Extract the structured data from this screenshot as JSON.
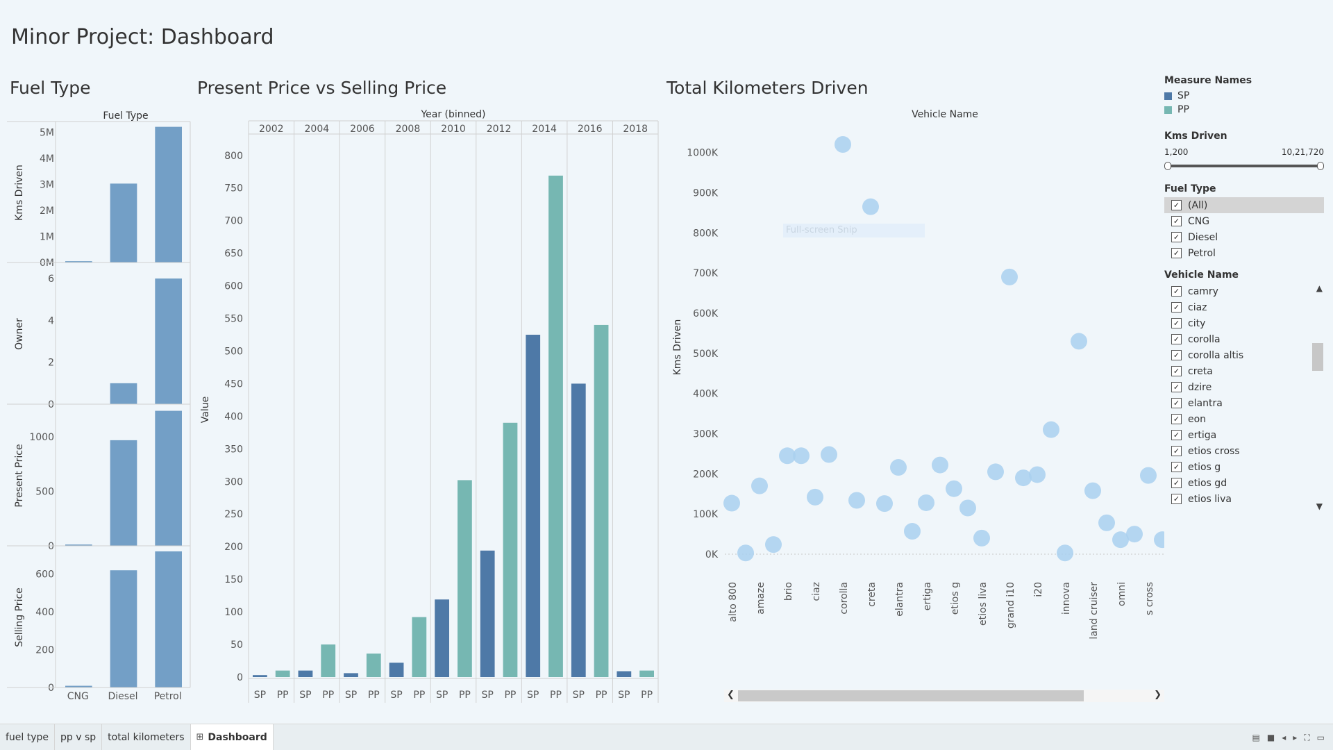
{
  "dashboard_title": "Minor Project: Dashboard",
  "colors": {
    "sp": "#4e79a7",
    "pp": "#76b7b2",
    "fuel_bar": "#739fc6",
    "bubble": "#a9d0ee"
  },
  "fuel_panel": {
    "title": "Fuel Type",
    "header": "Fuel Type",
    "categories": [
      "CNG",
      "Diesel",
      "Petrol"
    ],
    "rows": [
      {
        "label": "Kms Driven",
        "ticks": [
          "5M",
          "4M",
          "3M",
          "2M",
          "1M",
          "0M"
        ]
      },
      {
        "label": "Owner",
        "ticks": [
          "6",
          "4",
          "2",
          "0"
        ]
      },
      {
        "label": "Present Price",
        "ticks": [
          "1000",
          "500",
          "0"
        ]
      },
      {
        "label": "Selling Price",
        "ticks": [
          "600",
          "400",
          "200",
          "0"
        ]
      }
    ]
  },
  "pp_panel": {
    "title": "Present Price vs Selling Price",
    "header": "Year (binned)",
    "ylabel": "Value",
    "yticks": [
      "800",
      "750",
      "700",
      "650",
      "600",
      "550",
      "500",
      "450",
      "400",
      "350",
      "300",
      "250",
      "200",
      "150",
      "100",
      "50",
      "0"
    ],
    "sub_labels": [
      "SP",
      "PP"
    ]
  },
  "km_panel": {
    "title": "Total Kilometers Driven",
    "header": "Vehicle Name",
    "ylabel": "Kms Driven",
    "yticks": [
      "1000K",
      "900K",
      "800K",
      "700K",
      "600K",
      "500K",
      "400K",
      "300K",
      "200K",
      "100K",
      "0K"
    ]
  },
  "overlay_text": "Full-screen Snip",
  "legend": {
    "measure_title": "Measure Names",
    "measures": [
      {
        "label": "SP",
        "color": "#4e79a7"
      },
      {
        "label": "PP",
        "color": "#76b7b2"
      }
    ],
    "kms_title": "Kms Driven",
    "kms_min": "1,200",
    "kms_max": "10,21,720",
    "fuel_title": "Fuel Type",
    "fuel_items": [
      "(All)",
      "CNG",
      "Diesel",
      "Petrol"
    ],
    "vehicle_title": "Vehicle Name",
    "vehicle_items": [
      "camry",
      "ciaz",
      "city",
      "corolla",
      "corolla altis",
      "creta",
      "dzire",
      "elantra",
      "eon",
      "ertiga",
      "etios cross",
      "etios g",
      "etios gd",
      "etios liva"
    ]
  },
  "tabs": [
    "fuel type",
    "pp v sp",
    "total kilometers",
    "Dashboard"
  ],
  "tab_icon": "grid-icon",
  "chart_data": [
    {
      "type": "bar",
      "title": "Fuel Type",
      "categories": [
        "CNG",
        "Diesel",
        "Petrol"
      ],
      "series": [
        {
          "name": "Kms Driven",
          "values": [
            50000,
            3030000,
            5210000
          ]
        },
        {
          "name": "Owner",
          "values": [
            0,
            1,
            6
          ]
        },
        {
          "name": "Present Price",
          "values": [
            12,
            970,
            1240
          ]
        },
        {
          "name": "Selling Price",
          "values": [
            9,
            620,
            720
          ]
        }
      ],
      "ylims": [
        [
          0,
          5200000
        ],
        [
          0,
          6.5
        ],
        [
          0,
          1250
        ],
        [
          0,
          720
        ]
      ]
    },
    {
      "type": "bar",
      "title": "Present Price vs Selling Price",
      "xlabel": "Year (binned)",
      "ylabel": "Value",
      "categories": [
        "2002",
        "2004",
        "2006",
        "2008",
        "2010",
        "2012",
        "2014",
        "2016",
        "2018"
      ],
      "series": [
        {
          "name": "SP",
          "values": [
            3,
            10,
            6,
            22,
            119,
            194,
            525,
            450,
            9
          ]
        },
        {
          "name": "PP",
          "values": [
            10,
            50,
            36,
            92,
            302,
            390,
            769,
            540,
            10
          ]
        }
      ],
      "ylim": [
        0,
        820
      ]
    },
    {
      "type": "scatter",
      "title": "Total Kilometers Driven",
      "xlabel": "Vehicle Name",
      "ylabel": "Kms Driven",
      "x_ticks": [
        "alto 800",
        "amaze",
        "brio",
        "ciaz",
        "corolla",
        "creta",
        "elantra",
        "ertiga",
        "etios g",
        "etios liva",
        "grand i10",
        "i20",
        "innova",
        "land cruiser",
        "omni",
        "s cross"
      ],
      "points": [
        {
          "x": 0,
          "y": 127000
        },
        {
          "x": 1,
          "y": 3000
        },
        {
          "x": 2,
          "y": 170000
        },
        {
          "x": 3,
          "y": 24000
        },
        {
          "x": 4,
          "y": 245000
        },
        {
          "x": 5,
          "y": 245000
        },
        {
          "x": 6,
          "y": 142000
        },
        {
          "x": 7,
          "y": 248000
        },
        {
          "x": 8,
          "y": 1020000
        },
        {
          "x": 9,
          "y": 134000
        },
        {
          "x": 10,
          "y": 865000
        },
        {
          "x": 11,
          "y": 126000
        },
        {
          "x": 12,
          "y": 216000
        },
        {
          "x": 13,
          "y": 57000
        },
        {
          "x": 14,
          "y": 128000
        },
        {
          "x": 15,
          "y": 222000
        },
        {
          "x": 16,
          "y": 163000
        },
        {
          "x": 17,
          "y": 115000
        },
        {
          "x": 18,
          "y": 40000
        },
        {
          "x": 19,
          "y": 205000
        },
        {
          "x": 20,
          "y": 690000
        },
        {
          "x": 21,
          "y": 190000
        },
        {
          "x": 22,
          "y": 198000
        },
        {
          "x": 23,
          "y": 310000
        },
        {
          "x": 24,
          "y": 3000
        },
        {
          "x": 25,
          "y": 530000
        },
        {
          "x": 26,
          "y": 158000
        },
        {
          "x": 27,
          "y": 78000
        },
        {
          "x": 28,
          "y": 36000
        },
        {
          "x": 29,
          "y": 50000
        },
        {
          "x": 30,
          "y": 196000
        },
        {
          "x": 31,
          "y": 36000
        }
      ],
      "ylim": [
        0,
        1020000
      ]
    }
  ]
}
